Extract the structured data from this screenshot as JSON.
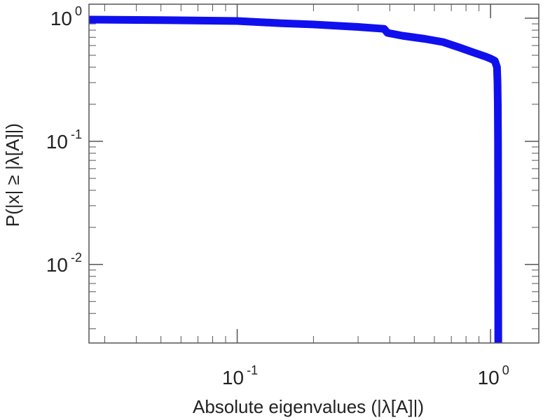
{
  "chart_data": {
    "type": "line",
    "title": "",
    "xlabel": "Absolute eigenvalues (|λ[A]|)",
    "ylabel": "P(|x| ≥ |λ[A]|)",
    "xscale": "log",
    "yscale": "log",
    "xlim": [
      0.026,
      1.55
    ],
    "ylim": [
      0.0023,
      1.3
    ],
    "grid": false,
    "legend": "none",
    "x_ticks": [
      {
        "base": "10",
        "exp": "-1",
        "value": 0.1
      },
      {
        "base": "10",
        "exp": "0",
        "value": 1
      }
    ],
    "y_ticks": [
      {
        "base": "10",
        "exp": "0",
        "value": 1
      },
      {
        "base": "10",
        "exp": "-1",
        "value": 0.1
      },
      {
        "base": "10",
        "exp": "-2",
        "value": 0.01
      }
    ],
    "series": [
      {
        "color": "#1010ee",
        "x": [
          0.026,
          0.05,
          0.1,
          0.15,
          0.2,
          0.3,
          0.38,
          0.392,
          0.45,
          0.55,
          0.65,
          0.75,
          0.85,
          0.95,
          1.0,
          1.04,
          1.06,
          1.065,
          1.068,
          1.07,
          1.071,
          1.072,
          1.0725
        ],
        "y": [
          0.975,
          0.965,
          0.95,
          0.91,
          0.89,
          0.85,
          0.82,
          0.76,
          0.72,
          0.68,
          0.64,
          0.58,
          0.53,
          0.49,
          0.47,
          0.45,
          0.4,
          0.3,
          0.2,
          0.1,
          0.03,
          0.005,
          0.0023
        ]
      }
    ]
  }
}
